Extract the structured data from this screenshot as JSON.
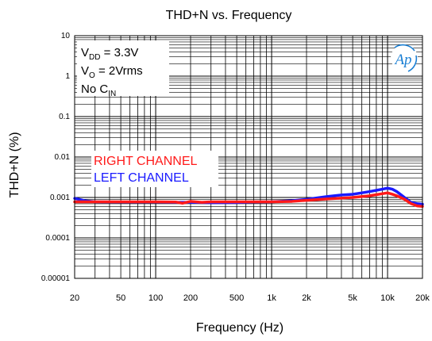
{
  "chart_data": {
    "type": "line",
    "title": "THD+N vs. Frequency",
    "xlabel": "Frequency (Hz)",
    "ylabel": "THD+N (%)",
    "x_scale": "log",
    "y_scale": "log",
    "xlim": [
      20,
      20000
    ],
    "ylim": [
      1e-05,
      10
    ],
    "grid": true,
    "x_ticks": [
      {
        "v": 20,
        "label": "20"
      },
      {
        "v": 50,
        "label": "50"
      },
      {
        "v": 100,
        "label": "100"
      },
      {
        "v": 200,
        "label": "200"
      },
      {
        "v": 500,
        "label": "500"
      },
      {
        "v": 1000,
        "label": "1k"
      },
      {
        "v": 2000,
        "label": "2k"
      },
      {
        "v": 5000,
        "label": "5k"
      },
      {
        "v": 10000,
        "label": "10k"
      },
      {
        "v": 20000,
        "label": "20k"
      }
    ],
    "y_ticks": [
      {
        "v": 10,
        "label": "10"
      },
      {
        "v": 1,
        "label": "1"
      },
      {
        "v": 0.1,
        "label": "0.1"
      },
      {
        "v": 0.01,
        "label": "0.01"
      },
      {
        "v": 0.001,
        "label": "0.001"
      },
      {
        "v": 0.0001,
        "label": "0.0001"
      },
      {
        "v": 1e-05,
        "label": "0.00001"
      }
    ],
    "annotations": {
      "line1_main": "V",
      "line1_sub": "DD",
      "line1_rest": " = 3.3V",
      "line2_main": "V",
      "line2_sub": "O",
      "line2_rest": " = 2Vrms",
      "line3_main": "No C",
      "line3_sub": "IN"
    },
    "logo": "Ap",
    "series": [
      {
        "name": "LEFT CHANNEL",
        "color": "#1a1aff",
        "points": [
          [
            20,
            0.00095
          ],
          [
            25,
            0.00082
          ],
          [
            30,
            0.00078
          ],
          [
            50,
            0.00077
          ],
          [
            100,
            0.00077
          ],
          [
            150,
            0.00076
          ],
          [
            200,
            0.00076
          ],
          [
            300,
            0.00074
          ],
          [
            500,
            0.00075
          ],
          [
            700,
            0.00077
          ],
          [
            1000,
            0.00078
          ],
          [
            1500,
            0.00083
          ],
          [
            2000,
            0.0009
          ],
          [
            3000,
            0.00105
          ],
          [
            4000,
            0.00115
          ],
          [
            5000,
            0.0012
          ],
          [
            6000,
            0.0013
          ],
          [
            7000,
            0.0014
          ],
          [
            8000,
            0.0015
          ],
          [
            9000,
            0.0016
          ],
          [
            10000,
            0.0017
          ],
          [
            11000,
            0.0016
          ],
          [
            12000,
            0.0014
          ],
          [
            14000,
            0.001
          ],
          [
            16000,
            0.00075
          ],
          [
            18000,
            0.0007
          ],
          [
            20000,
            0.00068
          ]
        ]
      },
      {
        "name": "RIGHT CHANNEL",
        "color": "#ff1a1a",
        "points": [
          [
            20,
            0.00078
          ],
          [
            30,
            0.00078
          ],
          [
            50,
            0.00078
          ],
          [
            100,
            0.00078
          ],
          [
            150,
            0.00077
          ],
          [
            170,
            0.00072
          ],
          [
            200,
            0.0008
          ],
          [
            250,
            0.00076
          ],
          [
            300,
            0.00078
          ],
          [
            500,
            0.00078
          ],
          [
            700,
            0.00078
          ],
          [
            1000,
            0.00078
          ],
          [
            1500,
            0.0008
          ],
          [
            2000,
            0.00085
          ],
          [
            3000,
            0.00092
          ],
          [
            5000,
            0.001
          ],
          [
            7000,
            0.0011
          ],
          [
            10000,
            0.0013
          ],
          [
            11000,
            0.0012
          ],
          [
            12000,
            0.0011
          ],
          [
            14000,
            0.0009
          ],
          [
            16000,
            0.0007
          ],
          [
            18000,
            0.00062
          ],
          [
            20000,
            0.0006
          ]
        ]
      }
    ],
    "legend": [
      {
        "label": "RIGHT CHANNEL",
        "color": "#ff1a1a"
      },
      {
        "label": "LEFT CHANNEL",
        "color": "#1a1aff"
      }
    ]
  }
}
